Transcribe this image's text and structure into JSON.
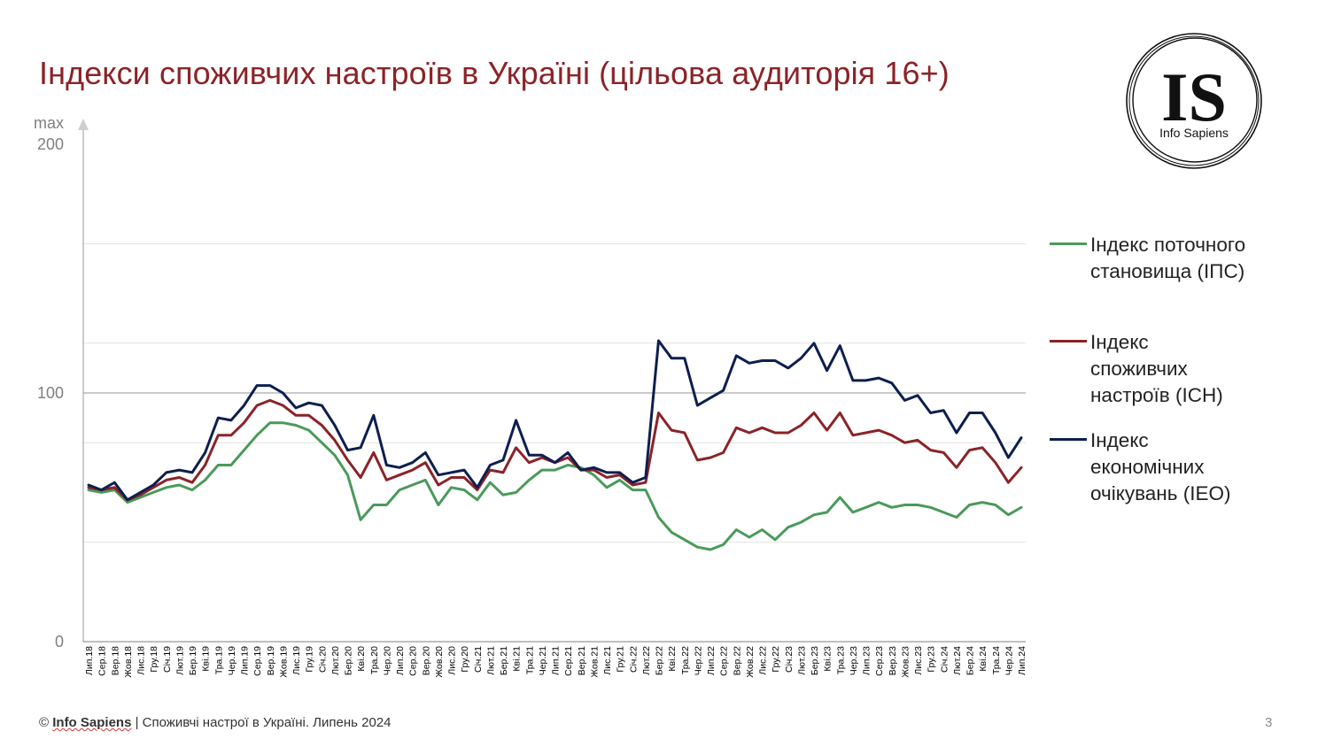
{
  "title": "Індекси споживчих настроїв в Україні (цільова аудиторія 16+)",
  "logo": {
    "mark": "IS",
    "name": "Info Sapiens"
  },
  "footer": {
    "prefix": "© ",
    "brand": "Info Sapiens",
    "text": " | Споживчі настрої в Україні. Липень 2024"
  },
  "page_number": "3",
  "colors": {
    "title": "#8b2328",
    "ips": "#4a9a5a",
    "isn": "#8b2328",
    "ieo": "#0d1f4f",
    "grid": "#d9d9d9",
    "axis": "#aaaaaa"
  },
  "chart_data": {
    "type": "line",
    "ylim": [
      0,
      200
    ],
    "yticks": [
      {
        "value": 0,
        "label": "0"
      },
      {
        "value": 100,
        "label": "100"
      },
      {
        "value": 200,
        "label": "max\n200"
      }
    ],
    "gridlines": [
      40,
      80,
      100,
      120,
      160
    ],
    "x": [
      "Лип.18",
      "Сер.18",
      "Вер.18",
      "Жов.18",
      "Лис.18",
      "Гру.18",
      "Січ.19",
      "Лют.19",
      "Бер.19",
      "Кві.19",
      "Тра.19",
      "Чер.19",
      "Лип.19",
      "Сер.19",
      "Вер.19",
      "Жов.19",
      "Лис.19",
      "Гру.19",
      "Січ.20",
      "Лют.20",
      "Бер.20",
      "Кві.20",
      "Тра.20",
      "Чер.20",
      "Лип.20",
      "Сер.20",
      "Вер.20",
      "Жов.20",
      "Лис.20",
      "Гру.20",
      "Січ.21",
      "Лют.21",
      "Бер.21",
      "Кві.21",
      "Тра.21",
      "Чер.21",
      "Лип.21",
      "Сер.21",
      "Вер.21",
      "Жов.21",
      "Лис.21",
      "Гру.21",
      "Січ.22",
      "Лют.22",
      "Бер.22",
      "Кві.22",
      "Тра.22",
      "Чер.22",
      "Лип.22",
      "Сер.22",
      "Вер.22",
      "Жов.22",
      "Лис.22",
      "Гру.22",
      "Січ.23",
      "Лют.23",
      "Бер.23",
      "Кві.23",
      "Тра.23",
      "Чер.23",
      "Лип.23",
      "Сер.23",
      "Вер.23",
      "Жов.23",
      "Лис.23",
      "Гру.23",
      "Січ.24",
      "Лют.24",
      "Бер.24",
      "Кві.24",
      "Тра.24",
      "Чер.24",
      "Лип.24"
    ],
    "series": [
      {
        "key": "ips",
        "name": "Індекс поточного\nстановища (ІПС)",
        "values": [
          61,
          60,
          61,
          56,
          58,
          60,
          62,
          63,
          61,
          65,
          71,
          71,
          77,
          83,
          88,
          88,
          87,
          85,
          80,
          75,
          67,
          49,
          55,
          55,
          61,
          63,
          65,
          55,
          62,
          61,
          57,
          64,
          59,
          60,
          65,
          69,
          69,
          71,
          70,
          67,
          62,
          65,
          61,
          61,
          50,
          44,
          41,
          38,
          37,
          39,
          45,
          42,
          45,
          41,
          46,
          48,
          51,
          52,
          58,
          52,
          54,
          56,
          54,
          55,
          55,
          54,
          52,
          50,
          55,
          56,
          55,
          51,
          54
        ]
      },
      {
        "key": "isn",
        "name": "Індекс\nспоживчих\nнастроїв (ІСН)",
        "values": [
          62,
          61,
          62,
          57,
          59,
          62,
          65,
          66,
          64,
          71,
          83,
          83,
          88,
          95,
          97,
          95,
          91,
          91,
          87,
          81,
          73,
          66,
          76,
          65,
          67,
          69,
          72,
          63,
          66,
          66,
          61,
          69,
          68,
          78,
          72,
          74,
          72,
          74,
          69,
          69,
          66,
          67,
          63,
          64,
          92,
          85,
          84,
          73,
          74,
          76,
          86,
          84,
          86,
          84,
          84,
          87,
          92,
          85,
          92,
          83,
          84,
          85,
          83,
          80,
          81,
          77,
          76,
          70,
          77,
          78,
          72,
          64,
          70
        ]
      },
      {
        "key": "ieo",
        "name": "Індекс\nекономічних\nочікувань (ІЕО)",
        "values": [
          63,
          61,
          64,
          57,
          60,
          63,
          68,
          69,
          68,
          76,
          90,
          89,
          95,
          103,
          103,
          100,
          94,
          96,
          95,
          87,
          77,
          78,
          91,
          71,
          70,
          72,
          76,
          67,
          68,
          69,
          62,
          71,
          73,
          89,
          75,
          75,
          72,
          76,
          69,
          70,
          68,
          68,
          64,
          66,
          121,
          114,
          114,
          95,
          98,
          101,
          115,
          112,
          113,
          113,
          110,
          114,
          120,
          109,
          119,
          105,
          105,
          106,
          104,
          97,
          99,
          92,
          93,
          84,
          92,
          92,
          84,
          74,
          82
        ]
      }
    ]
  }
}
